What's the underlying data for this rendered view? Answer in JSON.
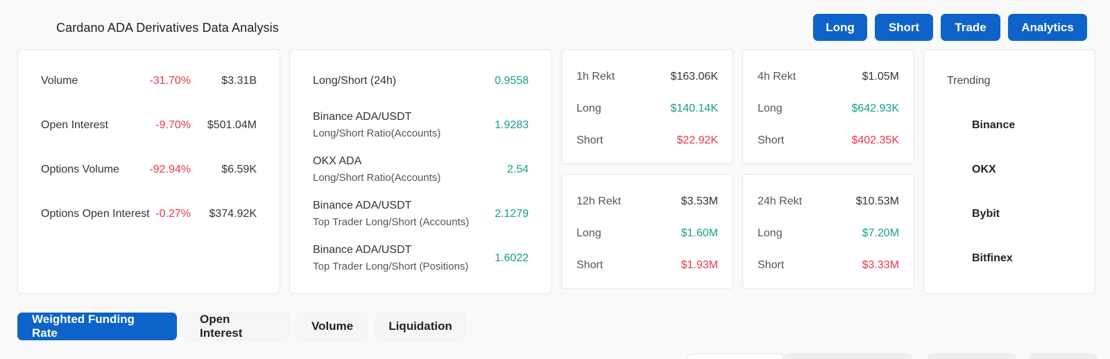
{
  "header": {
    "title": "Cardano ADA Derivatives Data Analysis",
    "buttons": {
      "long": "Long",
      "short": "Short",
      "trade": "Trade",
      "analytics": "Analytics"
    }
  },
  "overview": [
    {
      "label": "Volume",
      "change": "-31.70%",
      "value": "$3.31B"
    },
    {
      "label": "Open Interest",
      "change": "-9.70%",
      "value": "$501.04M"
    },
    {
      "label": "Options Volume",
      "change": "-92.94%",
      "value": "$6.59K"
    },
    {
      "label": "Options Open Interest",
      "change": "-0.27%",
      "value": "$374.92K"
    }
  ],
  "ratios": [
    {
      "line1": "Long/Short (24h)",
      "line2": "",
      "value": "0.9558"
    },
    {
      "line1": "Binance ADA/USDT",
      "line2": "Long/Short Ratio(Accounts)",
      "value": "1.9283"
    },
    {
      "line1": "OKX ADA",
      "line2": "Long/Short Ratio(Accounts)",
      "value": "2.54"
    },
    {
      "line1": "Binance ADA/USDT",
      "line2": "Top Trader Long/Short (Accounts)",
      "value": "2.1279"
    },
    {
      "line1": "Binance ADA/USDT",
      "line2": "Top Trader Long/Short (Positions)",
      "value": "1.6022"
    }
  ],
  "rekt": {
    "h1": {
      "title": "1h Rekt",
      "total": "$163.06K",
      "long_label": "Long",
      "long": "$140.14K",
      "short_label": "Short",
      "short": "$22.92K"
    },
    "h4": {
      "title": "4h Rekt",
      "total": "$1.05M",
      "long_label": "Long",
      "long": "$642.93K",
      "short_label": "Short",
      "short": "$402.35K"
    },
    "h12": {
      "title": "12h Rekt",
      "total": "$3.53M",
      "long_label": "Long",
      "long": "$1.60M",
      "short_label": "Short",
      "short": "$1.93M"
    },
    "h24": {
      "title": "24h Rekt",
      "total": "$10.53M",
      "long_label": "Long",
      "long": "$7.20M",
      "short_label": "Short",
      "short": "$3.33M"
    }
  },
  "trending": {
    "title": "Trending",
    "items": [
      "Binance",
      "OKX",
      "Bybit",
      "Bitfinex"
    ]
  },
  "tabs": [
    "Weighted Funding Rate",
    "Open Interest",
    "Volume",
    "Liquidation"
  ],
  "colors": {
    "accent": "#0d63c9",
    "positive": "#16a085",
    "negative": "#e8364a"
  }
}
